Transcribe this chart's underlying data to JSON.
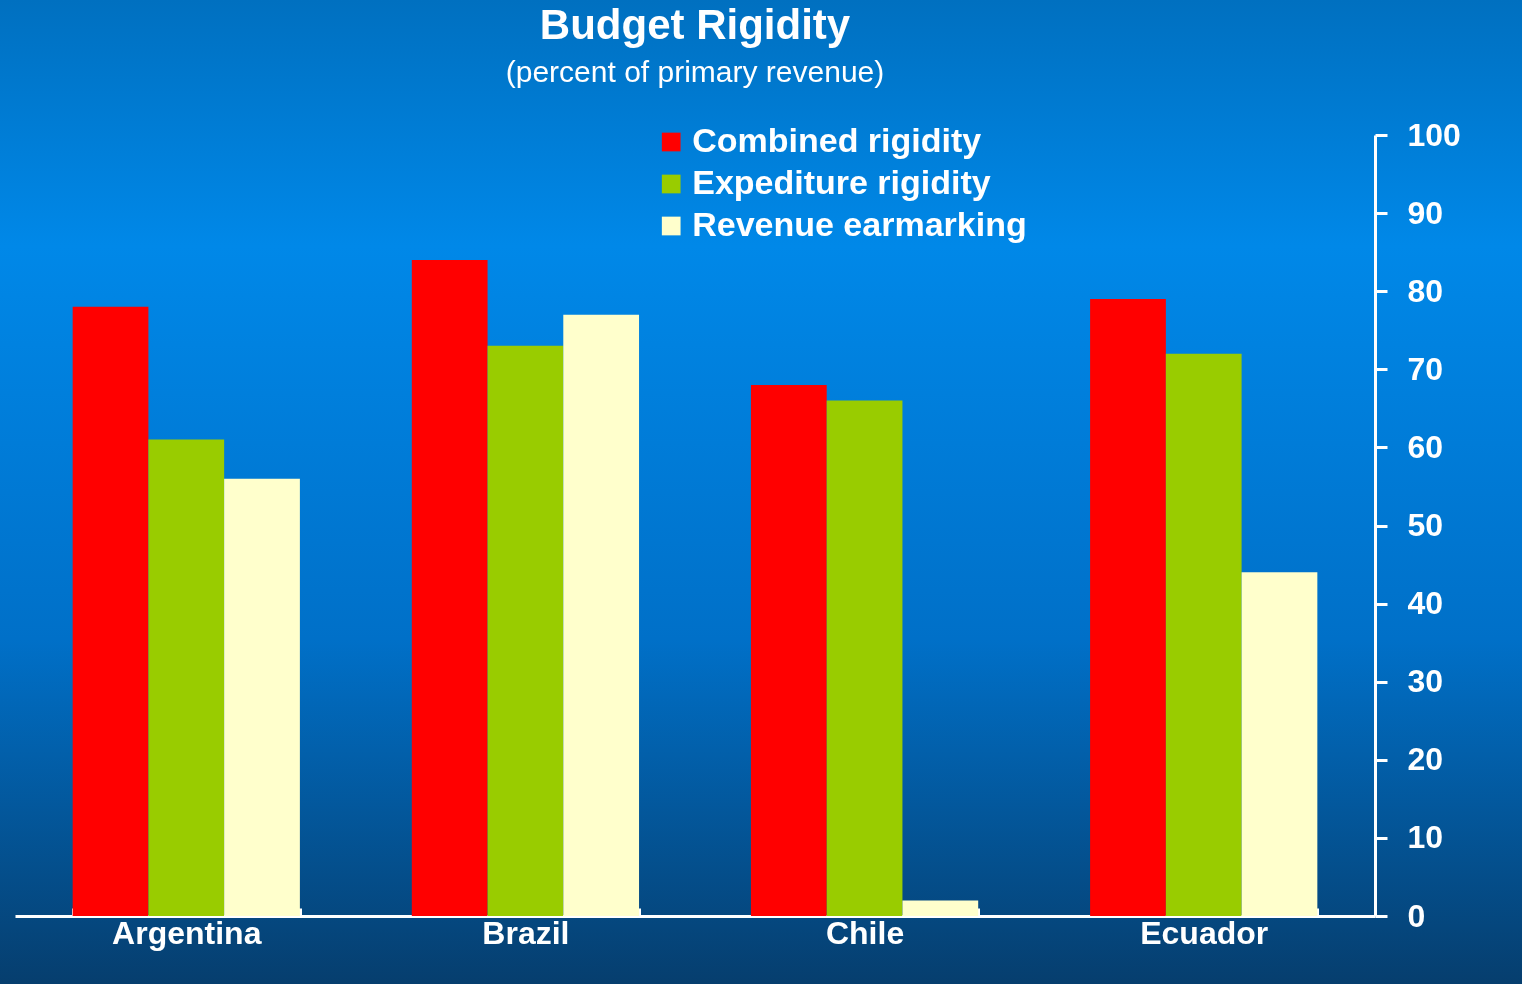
{
  "chart_data": {
    "type": "bar",
    "title": "Budget Rigidity",
    "subtitle": "(percent of primary revenue)",
    "categories": [
      "Argentina",
      "Brazil",
      "Chile",
      "Ecuador"
    ],
    "series": [
      {
        "name": "Combined rigidity",
        "color": "#ff0000",
        "values": [
          78,
          84,
          68,
          79
        ]
      },
      {
        "name": "Expediture rigidity",
        "color": "#99cc00",
        "values": [
          61,
          73,
          66,
          72
        ]
      },
      {
        "name": "Revenue earmarking",
        "color": "#ffffcc",
        "values": [
          56,
          77,
          2,
          44
        ]
      }
    ],
    "ylim": [
      0,
      100
    ],
    "yticks": [
      0,
      10,
      20,
      30,
      40,
      50,
      60,
      70,
      80,
      90,
      100
    ],
    "grid": false,
    "legend": "top"
  }
}
